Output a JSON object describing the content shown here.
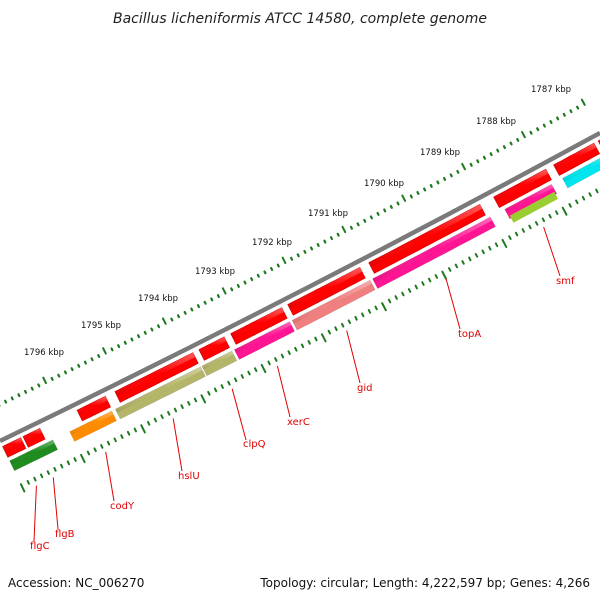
{
  "header": {
    "title": "Bacillus licheniformis ATCC 14580, complete genome"
  },
  "footer": {
    "accession": "Accession: NC_006270",
    "summary": "Topology: circular; Length: 4,222,597 bp; Genes: 4,266"
  },
  "kbp_labels": [
    "1787 kbp",
    "1788 kbp",
    "1789 kbp",
    "1790 kbp",
    "1791 kbp",
    "1792 kbp",
    "1793 kbp",
    "1794 kbp",
    "1795 kbp",
    "1796 kbp"
  ],
  "gene_labels": [
    "smf",
    "topA",
    "gid",
    "xerC",
    "clpQ",
    "hslU",
    "codY",
    "flgB",
    "flgC"
  ],
  "colors": {
    "backbone": "#7a7a7a",
    "cds": "#ff0000",
    "ticks": "#1f7a1f",
    "label": "#e00000"
  }
}
